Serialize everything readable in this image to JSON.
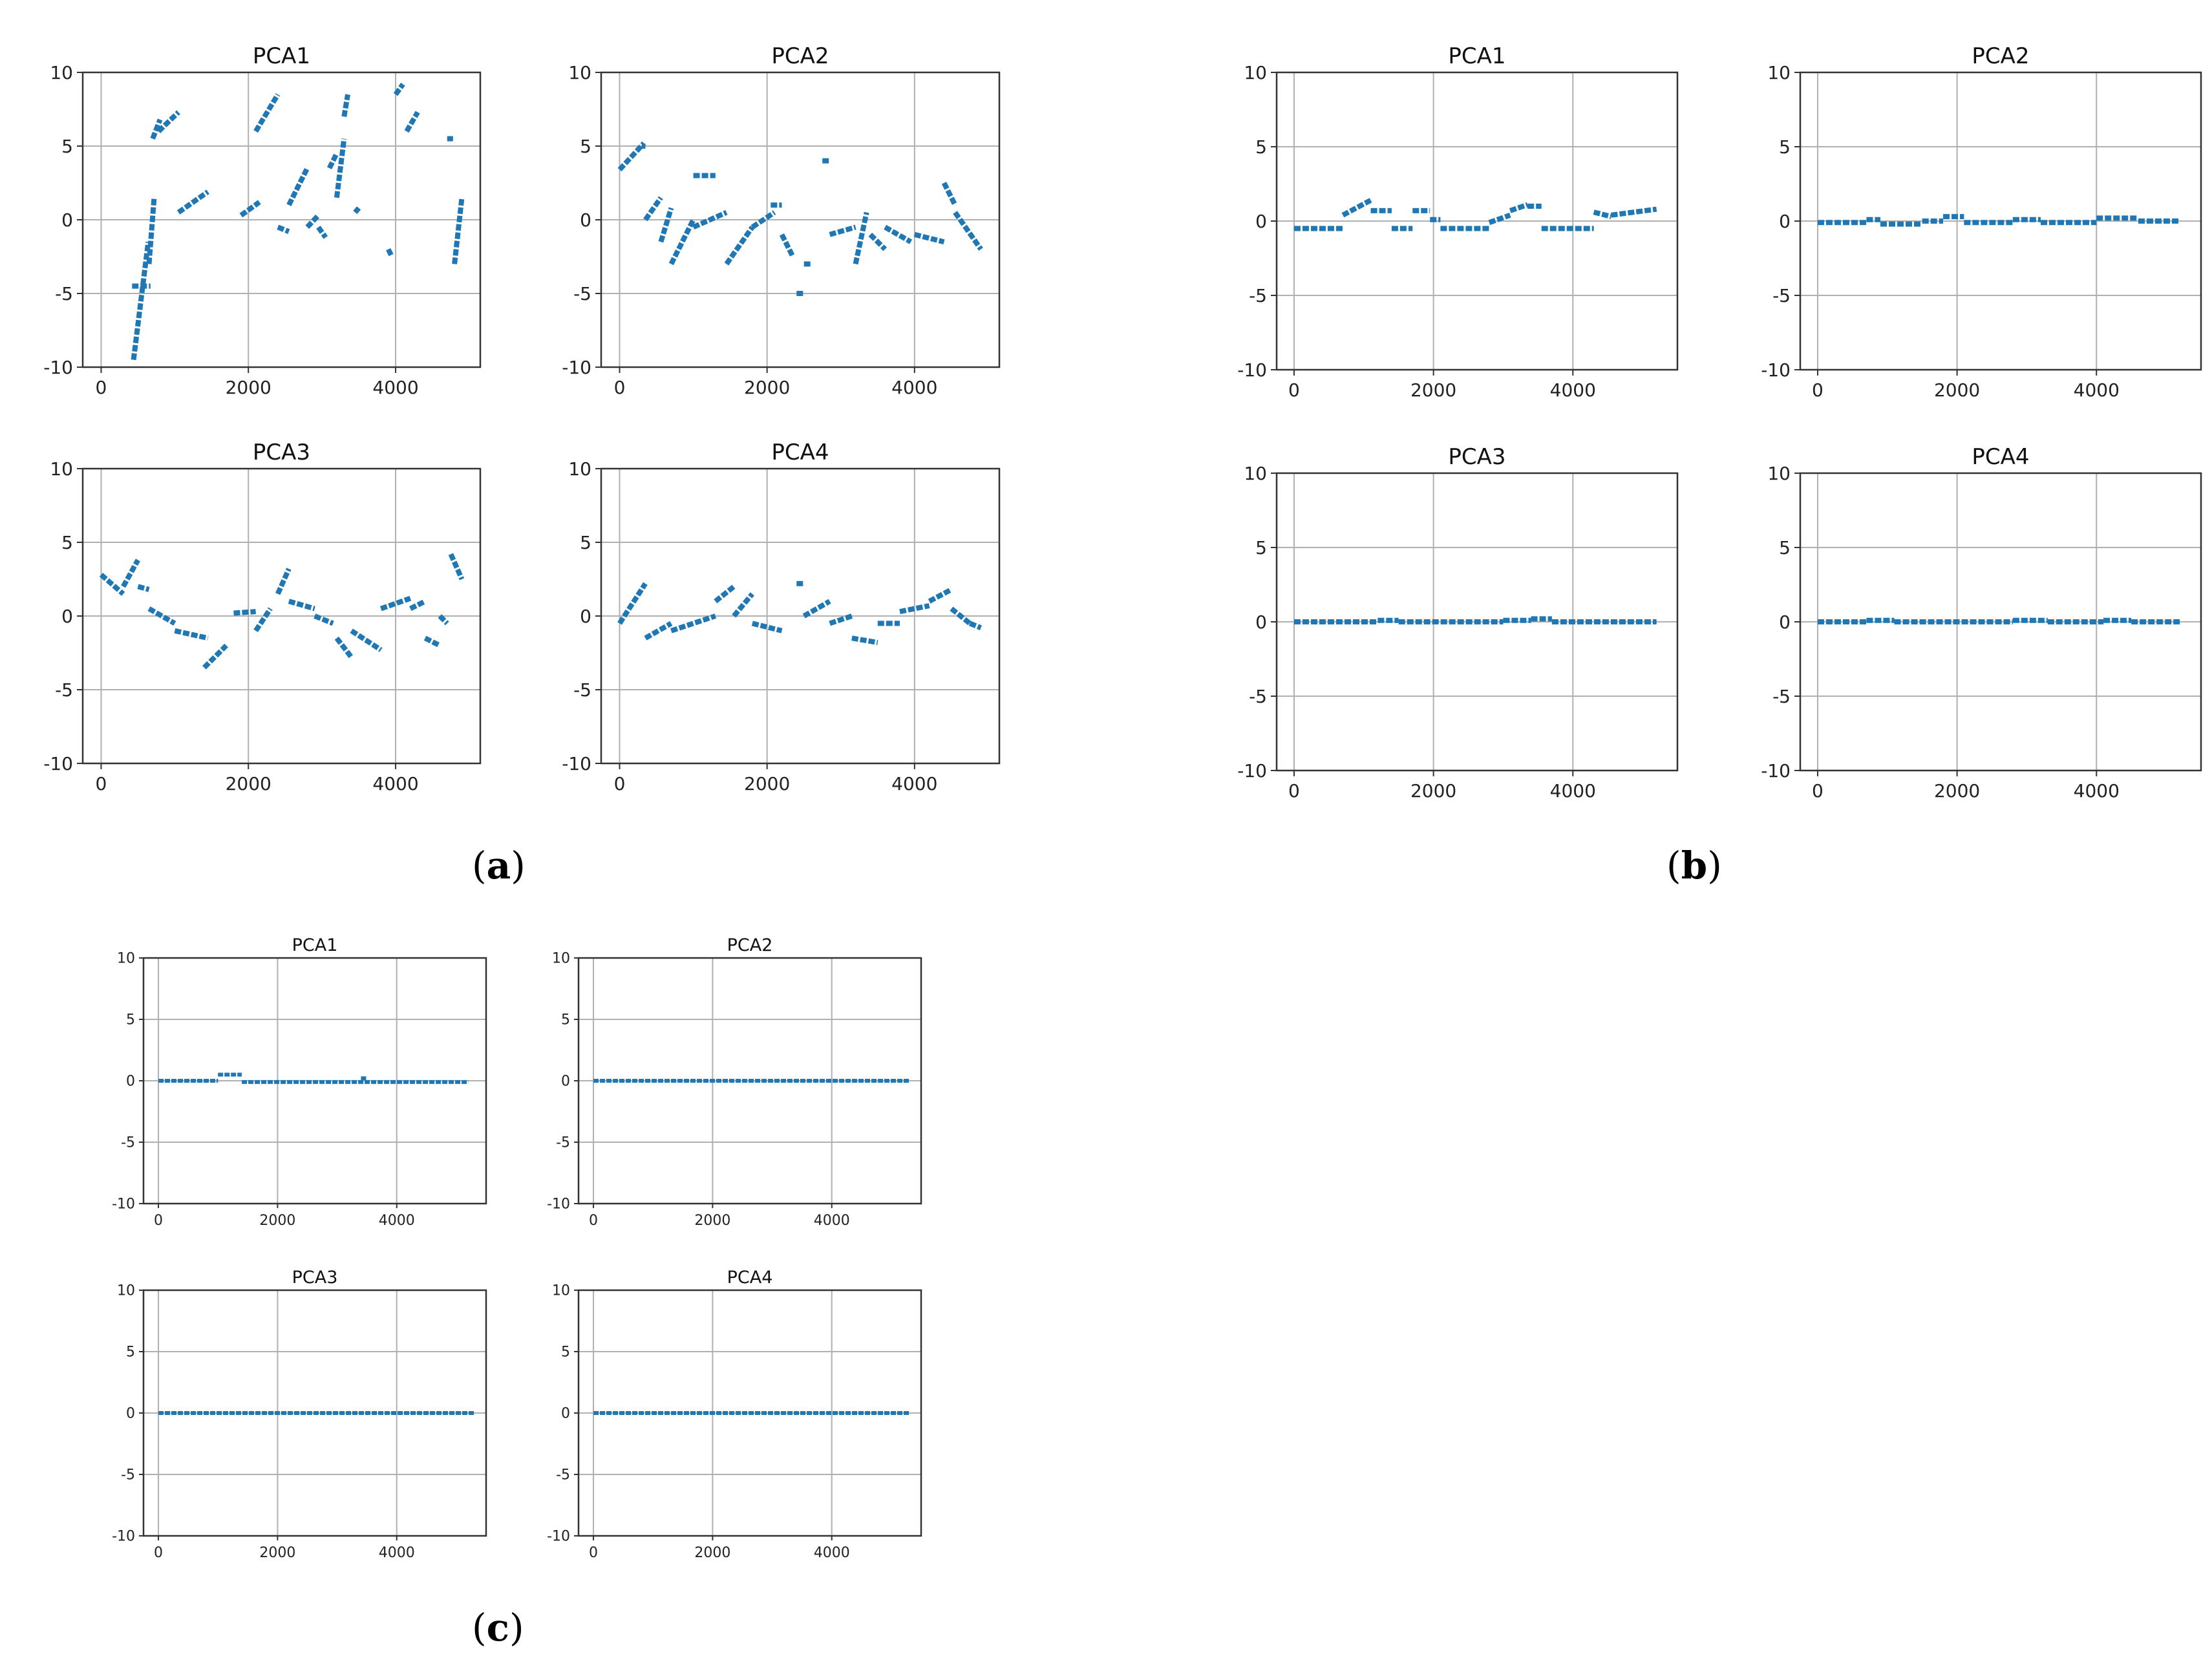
{
  "figure": {
    "panels": [
      {
        "id": "a",
        "label": "a"
      },
      {
        "id": "b",
        "label": "b"
      },
      {
        "id": "c",
        "label": "c"
      }
    ]
  },
  "colors": {
    "series": "#1f77b4",
    "grid": "#b0b0b0",
    "axis": "#333333"
  },
  "chart_data": [
    {
      "panel": "a",
      "type": "scatter",
      "title": "PCA1",
      "xlim": [
        -250,
        5150
      ],
      "ylim": [
        -10,
        10
      ],
      "xticks": [
        0,
        2000,
        4000
      ],
      "yticks": [
        10,
        5,
        0,
        -5,
        -10
      ],
      "grid": true,
      "xlabel": "",
      "ylabel": "",
      "segments": [
        [
          420,
          670,
          -4.5,
          -4.5
        ],
        [
          440,
          640,
          -9.5,
          -1.5
        ],
        [
          650,
          720,
          -3,
          1.5
        ],
        [
          700,
          800,
          5.5,
          6.8
        ],
        [
          780,
          1050,
          6,
          7.3
        ],
        [
          1050,
          1450,
          0.5,
          1.9
        ],
        [
          1900,
          2150,
          0.3,
          1.2
        ],
        [
          2100,
          2400,
          6,
          8.5
        ],
        [
          2400,
          2550,
          -0.5,
          -0.8
        ],
        [
          2550,
          2800,
          1,
          3.5
        ],
        [
          2800,
          2950,
          -0.5,
          0.3
        ],
        [
          2950,
          3050,
          -0.5,
          -1.2
        ],
        [
          3100,
          3200,
          3.5,
          4.5
        ],
        [
          3200,
          3300,
          1.5,
          5.5
        ],
        [
          3300,
          3350,
          7,
          8.5
        ],
        [
          3450,
          3500,
          0.5,
          0.8
        ],
        [
          3900,
          3950,
          -2,
          -2.5
        ],
        [
          4000,
          4100,
          8.5,
          9.2
        ],
        [
          4150,
          4300,
          6,
          7.3
        ],
        [
          4700,
          4780,
          5.5,
          5.5
        ],
        [
          4800,
          4900,
          -3,
          1.5
        ]
      ]
    },
    {
      "panel": "a",
      "type": "scatter",
      "title": "PCA2",
      "xlim": [
        -250,
        5150
      ],
      "ylim": [
        -10,
        10
      ],
      "xticks": [
        0,
        2000,
        4000
      ],
      "yticks": [
        10,
        5,
        0,
        -5,
        -10
      ],
      "grid": true,
      "xlabel": "",
      "ylabel": "",
      "segments": [
        [
          0,
          330,
          3.4,
          5.2
        ],
        [
          300,
          350,
          5,
          5
        ],
        [
          350,
          560,
          0,
          1.5
        ],
        [
          560,
          700,
          -1.5,
          0.8
        ],
        [
          700,
          1000,
          -3,
          0
        ],
        [
          1000,
          1300,
          3,
          3
        ],
        [
          1000,
          1450,
          -0.5,
          0.5
        ],
        [
          1450,
          1800,
          -3,
          -0.5
        ],
        [
          1800,
          2100,
          -0.5,
          0.5
        ],
        [
          2050,
          2200,
          1,
          1
        ],
        [
          2200,
          2350,
          -1,
          -2.5
        ],
        [
          2400,
          2500,
          -5,
          -5
        ],
        [
          2500,
          2600,
          -3,
          -3
        ],
        [
          2750,
          2850,
          4,
          4
        ],
        [
          2850,
          3200,
          -1,
          -0.5
        ],
        [
          3200,
          3350,
          -3,
          0.5
        ],
        [
          3400,
          3600,
          -1,
          -2
        ],
        [
          3600,
          3950,
          -0.5,
          -1.5
        ],
        [
          4000,
          4400,
          -1,
          -1.5
        ],
        [
          4400,
          4550,
          2.5,
          1
        ],
        [
          4550,
          4900,
          0.5,
          -2
        ]
      ]
    },
    {
      "panel": "a",
      "type": "scatter",
      "title": "PCA3",
      "xlim": [
        -250,
        5150
      ],
      "ylim": [
        -10,
        10
      ],
      "xticks": [
        0,
        2000,
        4000
      ],
      "yticks": [
        10,
        5,
        0,
        -5,
        -10
      ],
      "grid": true,
      "xlabel": "",
      "ylabel": "",
      "segments": [
        [
          0,
          300,
          2.8,
          1.5
        ],
        [
          300,
          500,
          2,
          3.8
        ],
        [
          500,
          650,
          2,
          1.8
        ],
        [
          650,
          1000,
          0.5,
          -0.5
        ],
        [
          1000,
          1450,
          -1,
          -1.5
        ],
        [
          1400,
          1700,
          -3.5,
          -2
        ],
        [
          1800,
          2100,
          0.2,
          0.3
        ],
        [
          2100,
          2300,
          -1,
          0.5
        ],
        [
          2400,
          2550,
          1.5,
          3.2
        ],
        [
          2550,
          2900,
          1,
          0.5
        ],
        [
          2900,
          3150,
          0,
          -0.5
        ],
        [
          3200,
          3400,
          -1.5,
          -2.8
        ],
        [
          3400,
          3800,
          -1,
          -2.3
        ],
        [
          3800,
          4200,
          0.5,
          1.2
        ],
        [
          4200,
          4400,
          0.5,
          1
        ],
        [
          4400,
          4600,
          -1.5,
          -2
        ],
        [
          4600,
          4700,
          0,
          -0.5
        ],
        [
          4750,
          4900,
          4.2,
          2.5
        ]
      ]
    },
    {
      "panel": "a",
      "type": "scatter",
      "title": "PCA4",
      "xlim": [
        -250,
        5150
      ],
      "ylim": [
        -10,
        10
      ],
      "xticks": [
        0,
        2000,
        4000
      ],
      "yticks": [
        10,
        5,
        0,
        -5,
        -10
      ],
      "grid": true,
      "xlabel": "",
      "ylabel": "",
      "segments": [
        [
          0,
          350,
          -0.5,
          2.2
        ],
        [
          350,
          700,
          -1.5,
          -0.5
        ],
        [
          700,
          1300,
          -1,
          0
        ],
        [
          1300,
          1550,
          1,
          2
        ],
        [
          1550,
          1800,
          0,
          1.5
        ],
        [
          1800,
          2200,
          -0.5,
          -1
        ],
        [
          2400,
          2500,
          2.2,
          2.2
        ],
        [
          2500,
          2850,
          0,
          1
        ],
        [
          2850,
          3150,
          -0.5,
          0
        ],
        [
          3150,
          3500,
          -1.5,
          -1.8
        ],
        [
          3500,
          3800,
          -0.5,
          -0.5
        ],
        [
          3800,
          4200,
          0.3,
          0.7
        ],
        [
          4200,
          4500,
          1,
          1.8
        ],
        [
          4500,
          4750,
          0.5,
          -0.5
        ],
        [
          4750,
          4900,
          -0.5,
          -0.8
        ]
      ]
    },
    {
      "panel": "b",
      "type": "scatter",
      "title": "PCA1",
      "xlim": [
        -250,
        5500
      ],
      "ylim": [
        -10,
        10
      ],
      "xticks": [
        0,
        2000,
        4000
      ],
      "yticks": [
        10,
        5,
        0,
        -5,
        -10
      ],
      "grid": true,
      "xlabel": "",
      "ylabel": "",
      "segments": [
        [
          0,
          700,
          -0.5,
          -0.5
        ],
        [
          700,
          1100,
          0.4,
          1.4
        ],
        [
          1100,
          1400,
          0.7,
          0.7
        ],
        [
          1400,
          1700,
          -0.5,
          -0.5
        ],
        [
          1700,
          1950,
          0.7,
          0.7
        ],
        [
          1950,
          2100,
          0.1,
          0.1
        ],
        [
          2100,
          2800,
          -0.5,
          -0.5
        ],
        [
          2800,
          3100,
          -0.1,
          0.4
        ],
        [
          3100,
          3350,
          0.7,
          1.1
        ],
        [
          3350,
          3550,
          1,
          1
        ],
        [
          3550,
          4300,
          -0.5,
          -0.5
        ],
        [
          4300,
          4550,
          0.6,
          0.3
        ],
        [
          4550,
          5200,
          0.4,
          0.8
        ]
      ]
    },
    {
      "panel": "b",
      "type": "scatter",
      "title": "PCA2",
      "xlim": [
        -250,
        5500
      ],
      "ylim": [
        -10,
        10
      ],
      "xticks": [
        0,
        2000,
        4000
      ],
      "yticks": [
        10,
        5,
        0,
        -5,
        -10
      ],
      "grid": true,
      "xlabel": "",
      "ylabel": "",
      "segments": [
        [
          0,
          700,
          -0.1,
          -0.1
        ],
        [
          700,
          900,
          0.1,
          0.1
        ],
        [
          900,
          1500,
          -0.2,
          -0.2
        ],
        [
          1500,
          1800,
          0,
          0
        ],
        [
          1800,
          2100,
          0.3,
          0.3
        ],
        [
          2100,
          2800,
          -0.1,
          -0.1
        ],
        [
          2800,
          3200,
          0.1,
          0.1
        ],
        [
          3200,
          4000,
          -0.1,
          -0.1
        ],
        [
          4000,
          4600,
          0.2,
          0.2
        ],
        [
          4600,
          5200,
          0,
          0
        ]
      ]
    },
    {
      "panel": "b",
      "type": "scatter",
      "title": "PCA3",
      "xlim": [
        -250,
        5500
      ],
      "ylim": [
        -10,
        10
      ],
      "xticks": [
        0,
        2000,
        4000
      ],
      "yticks": [
        10,
        5,
        0,
        -5,
        -10
      ],
      "grid": true,
      "xlabel": "",
      "ylabel": "",
      "segments": [
        [
          0,
          1200,
          0,
          0
        ],
        [
          1200,
          1500,
          0.1,
          0.1
        ],
        [
          1500,
          3000,
          0,
          0
        ],
        [
          3000,
          3400,
          0.1,
          0.1
        ],
        [
          3400,
          3700,
          0.2,
          0.2
        ],
        [
          3700,
          5200,
          0,
          0
        ]
      ]
    },
    {
      "panel": "b",
      "type": "scatter",
      "title": "PCA4",
      "xlim": [
        -250,
        5500
      ],
      "ylim": [
        -10,
        10
      ],
      "xticks": [
        0,
        2000,
        4000
      ],
      "yticks": [
        10,
        5,
        0,
        -5,
        -10
      ],
      "grid": true,
      "xlabel": "",
      "ylabel": "",
      "segments": [
        [
          0,
          700,
          0,
          0
        ],
        [
          700,
          1100,
          0.1,
          0.1
        ],
        [
          1100,
          2800,
          0,
          0
        ],
        [
          2800,
          3300,
          0.1,
          0.1
        ],
        [
          3300,
          4100,
          0,
          0
        ],
        [
          4100,
          4500,
          0.1,
          0.1
        ],
        [
          4500,
          5200,
          0,
          0
        ]
      ]
    },
    {
      "panel": "c",
      "type": "scatter",
      "title": "PCA1",
      "xlim": [
        -250,
        5500
      ],
      "ylim": [
        -10,
        10
      ],
      "xticks": [
        0,
        2000,
        4000
      ],
      "yticks": [
        10,
        5,
        0,
        -5,
        -10
      ],
      "grid": true,
      "xlabel": "",
      "ylabel": "",
      "segments": [
        [
          0,
          1000,
          0,
          0
        ],
        [
          1000,
          1400,
          0.5,
          0.5
        ],
        [
          1400,
          5200,
          -0.1,
          -0.1
        ],
        [
          3400,
          3500,
          0.2,
          0.2
        ]
      ]
    },
    {
      "panel": "c",
      "type": "scatter",
      "title": "PCA2",
      "xlim": [
        -250,
        5500
      ],
      "ylim": [
        -10,
        10
      ],
      "xticks": [
        0,
        2000,
        4000
      ],
      "yticks": [
        10,
        5,
        0,
        -5,
        -10
      ],
      "grid": true,
      "xlabel": "",
      "ylabel": "",
      "segments": [
        [
          0,
          5300,
          0,
          0
        ]
      ]
    },
    {
      "panel": "c",
      "type": "scatter",
      "title": "PCA3",
      "xlim": [
        -250,
        5500
      ],
      "ylim": [
        -10,
        10
      ],
      "xticks": [
        0,
        2000,
        4000
      ],
      "yticks": [
        10,
        5,
        0,
        -5,
        -10
      ],
      "grid": true,
      "xlabel": "",
      "ylabel": "",
      "segments": [
        [
          0,
          5300,
          0,
          0
        ]
      ]
    },
    {
      "panel": "c",
      "type": "scatter",
      "title": "PCA4",
      "xlim": [
        -250,
        5500
      ],
      "ylim": [
        -10,
        10
      ],
      "xticks": [
        0,
        2000,
        4000
      ],
      "yticks": [
        10,
        5,
        0,
        -5,
        -10
      ],
      "grid": true,
      "xlabel": "",
      "ylabel": "",
      "segments": [
        [
          0,
          5300,
          0,
          0
        ]
      ]
    }
  ]
}
